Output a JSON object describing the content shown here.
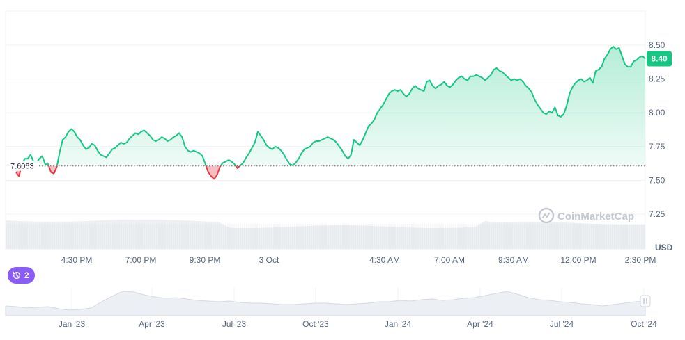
{
  "chart_data": {
    "type": "area",
    "ylabel": "USD",
    "ylim": [
      7.2,
      8.66
    ],
    "y_ticks": [
      "8.50",
      "8.25",
      "8.00",
      "7.75",
      "7.50",
      "7.25"
    ],
    "x_ticks": [
      "4:30 PM",
      "7:00 PM",
      "9:30 PM",
      "3 Oct",
      "4:30 AM",
      "7:00 AM",
      "9:30 AM",
      "12:00 PM",
      "2:30 PM"
    ],
    "reference_price": 7.6063,
    "reference_label": "7.6063",
    "current_price": 8.4,
    "current_price_label": "8.40",
    "series": [
      {
        "values": [
          7.56,
          7.53,
          7.62,
          7.66,
          7.66,
          7.69,
          7.64,
          7.63,
          7.66,
          7.68,
          7.62,
          7.62,
          7.56,
          7.55,
          7.6,
          7.71,
          7.8,
          7.82,
          7.86,
          7.88,
          7.86,
          7.82,
          7.8,
          7.76,
          7.73,
          7.74,
          7.77,
          7.76,
          7.72,
          7.69,
          7.68,
          7.67,
          7.7,
          7.73,
          7.74,
          7.76,
          7.78,
          7.77,
          7.78,
          7.81,
          7.83,
          7.85,
          7.84,
          7.86,
          7.87,
          7.85,
          7.83,
          7.8,
          7.79,
          7.8,
          7.82,
          7.81,
          7.79,
          7.8,
          7.82,
          7.83,
          7.85,
          7.82,
          7.75,
          7.72,
          7.71,
          7.72,
          7.71,
          7.7,
          7.68,
          7.62,
          7.56,
          7.53,
          7.51,
          7.54,
          7.6,
          7.63,
          7.64,
          7.65,
          7.64,
          7.62,
          7.59,
          7.61,
          7.63,
          7.67,
          7.7,
          7.74,
          7.78,
          7.86,
          7.83,
          7.8,
          7.76,
          7.74,
          7.73,
          7.75,
          7.74,
          7.72,
          7.69,
          7.65,
          7.62,
          7.61,
          7.63,
          7.66,
          7.7,
          7.73,
          7.74,
          7.75,
          7.78,
          7.79,
          7.79,
          7.8,
          7.81,
          7.82,
          7.81,
          7.8,
          7.78,
          7.75,
          7.72,
          7.68,
          7.66,
          7.69,
          7.8,
          7.78,
          7.76,
          7.8,
          7.85,
          7.9,
          7.92,
          7.95,
          8.0,
          8.03,
          8.06,
          8.1,
          8.14,
          8.16,
          8.17,
          8.16,
          8.17,
          8.14,
          8.12,
          8.14,
          8.18,
          8.2,
          8.18,
          8.17,
          8.16,
          8.23,
          8.24,
          8.2,
          8.18,
          8.2,
          8.21,
          8.23,
          8.2,
          8.19,
          8.21,
          8.24,
          8.26,
          8.27,
          8.25,
          8.24,
          8.27,
          8.27,
          8.28,
          8.27,
          8.26,
          8.24,
          8.26,
          8.28,
          8.32,
          8.33,
          8.31,
          8.3,
          8.28,
          8.26,
          8.24,
          8.25,
          8.24,
          8.25,
          8.23,
          8.2,
          8.18,
          8.15,
          8.1,
          8.06,
          8.03,
          8.0,
          7.99,
          8.01,
          8.0,
          8.04,
          7.98,
          7.97,
          7.99,
          8.05,
          8.14,
          8.19,
          8.22,
          8.24,
          8.25,
          8.23,
          8.24,
          8.26,
          8.22,
          8.31,
          8.32,
          8.34,
          8.4,
          8.43,
          8.47,
          8.49,
          8.47,
          8.48,
          8.42,
          8.36,
          8.34,
          8.34,
          8.38,
          8.39,
          8.41,
          8.42,
          8.4
        ]
      }
    ],
    "watermark": "CoinMarketCap"
  },
  "overview": {
    "x_ticks": [
      "Jan '23",
      "Apr '23",
      "Jul '23",
      "Oct '23",
      "Jan '24",
      "Apr '24",
      "Jul '24",
      "Oct '24"
    ],
    "handle_icon": "grip-handle-icon"
  },
  "events": {
    "count": "2",
    "icon": "history-clock-icon",
    "color": "#8b5cf6"
  },
  "colors": {
    "up": "#16c784",
    "down": "#ea3943",
    "badge": "#16c784",
    "grid": "#eff2f5",
    "text": "#58667e"
  }
}
